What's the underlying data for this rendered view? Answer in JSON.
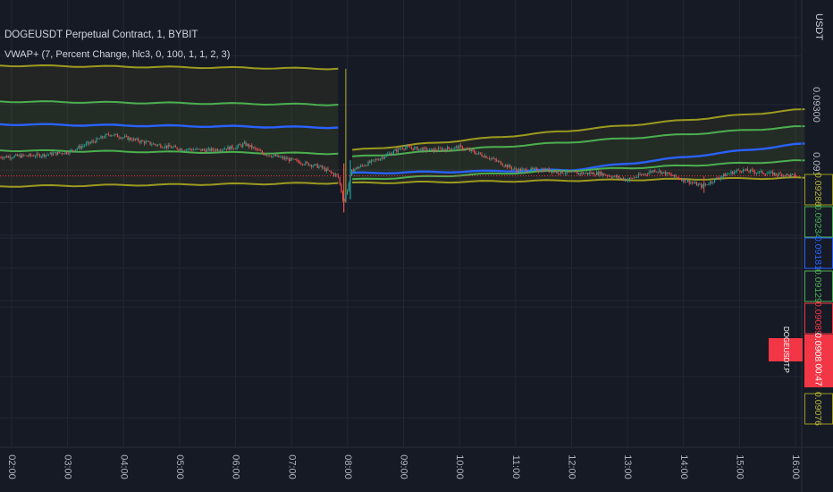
{
  "header": {
    "symbol_line": "DOGEUSDT Perpetual Contract, 1, BYBIT",
    "indicator_line": "VWAP+ (7, Percent Change, hlc3, 0, 100, 1, 1, 2, 3)"
  },
  "price_axis": {
    "unit": "USDT",
    "ticks": [
      "0.09300",
      "0.09100"
    ]
  },
  "price_labels": [
    {
      "text": "0.09286",
      "color": "#9c9a1f",
      "text_color": "#b5b33a",
      "filled": false
    },
    {
      "text": "0.09234",
      "color": "#4caf50",
      "text_color": "#4caf50",
      "filled": false
    },
    {
      "text": "0.09181",
      "color": "#2962ff",
      "text_color": "#2962ff",
      "filled": false
    },
    {
      "text": "0.09129",
      "color": "#4caf50",
      "text_color": "#4caf50",
      "filled": false
    },
    {
      "text": "0.09089",
      "color": "#f23645",
      "text_color": "#f23645",
      "filled": false
    },
    {
      "text": "0.09082",
      "color": "#f23645",
      "text_color": "#ffffff",
      "filled": true
    },
    {
      "text": "0.09076",
      "color": "#9c9a1f",
      "text_color": "#b5b33a",
      "filled": false
    }
  ],
  "symbol_tag": "DOGEUSDT.P",
  "countdown": "00:47",
  "time_axis": [
    "02:00",
    "03:00",
    "04:00",
    "05:00",
    "06:00",
    "07:00",
    "08:00",
    "09:00",
    "10:00",
    "11:00",
    "12:00",
    "13:00",
    "14:00",
    "15:00",
    "16:00"
  ],
  "colors": {
    "background": "#161a25",
    "grid": "#232732",
    "vwap": "#2962ff",
    "band1": "#4caf50",
    "band2": "#9c9a1f",
    "up": "#26a69a",
    "down": "#ef5350",
    "current_price_line": "#f23645"
  },
  "chart_data": {
    "type": "candlestick",
    "title": "DOGEUSDT Perpetual Contract, 1, BYBIT",
    "indicator": "VWAP+ (7, Percent Change, hlc3, 0, 100, 1, 1, 2, 3)",
    "x_axis": {
      "type": "time",
      "start": "01:47",
      "end": "16:10",
      "interval": "1 minute"
    },
    "y_axis": {
      "unit": "USDT",
      "range": [
        0.0899,
        0.0945
      ],
      "ticks": [
        0.093,
        0.091
      ]
    },
    "session_break": "08:00",
    "current_price": 0.09082,
    "price_path": [
      [
        "01:47",
        0.0914
      ],
      [
        "02:30",
        0.09145
      ],
      [
        "03:00",
        0.09155
      ],
      [
        "03:30",
        0.0919
      ],
      [
        "03:45",
        0.0921
      ],
      [
        "04:30",
        0.0918
      ],
      [
        "05:00",
        0.09165
      ],
      [
        "05:30",
        0.0916
      ],
      [
        "06:00",
        0.0917
      ],
      [
        "06:10",
        0.0918
      ],
      [
        "06:30",
        0.0915
      ],
      [
        "07:00",
        0.0913
      ],
      [
        "07:30",
        0.0911
      ],
      [
        "07:50",
        0.0908
      ],
      [
        "07:56",
        0.09
      ],
      [
        "08:05",
        0.091
      ],
      [
        "08:30",
        0.0913
      ],
      [
        "09:00",
        0.0917
      ],
      [
        "09:30",
        0.0916
      ],
      [
        "10:00",
        0.0917
      ],
      [
        "10:30",
        0.0914
      ],
      [
        "11:00",
        0.091
      ],
      [
        "11:30",
        0.091
      ],
      [
        "12:00",
        0.0909
      ],
      [
        "12:30",
        0.0909
      ],
      [
        "13:00",
        0.0907
      ],
      [
        "13:30",
        0.091
      ],
      [
        "14:00",
        0.0907
      ],
      [
        "14:20",
        0.0905
      ],
      [
        "14:40",
        0.0908
      ],
      [
        "15:00",
        0.091
      ],
      [
        "15:30",
        0.0909
      ],
      [
        "16:00",
        0.09082
      ]
    ],
    "series": [
      {
        "name": "VWAP",
        "color": "#2962ff",
        "values": [
          [
            "01:47",
            0.0924
          ],
          [
            "07:50",
            0.0923
          ],
          [
            "08:05",
            0.0909
          ],
          [
            "12:00",
            0.091
          ],
          [
            "16:10",
            0.09181
          ]
        ]
      },
      {
        "name": "Upper 1",
        "color": "#4caf50",
        "values": [
          [
            "01:47",
            0.0931
          ],
          [
            "07:50",
            0.093
          ],
          [
            "08:05",
            0.0914
          ],
          [
            "16:10",
            0.09234
          ]
        ]
      },
      {
        "name": "Lower 1",
        "color": "#4caf50",
        "values": [
          [
            "01:47",
            0.0916
          ],
          [
            "07:50",
            0.0915
          ],
          [
            "08:05",
            0.0907
          ],
          [
            "16:10",
            0.09129
          ]
        ]
      },
      {
        "name": "Upper 2",
        "color": "#9c9a1f",
        "values": [
          [
            "01:47",
            0.0942
          ],
          [
            "07:50",
            0.0941
          ],
          [
            "08:05",
            0.0916
          ],
          [
            "16:10",
            0.09286
          ]
        ]
      },
      {
        "name": "Lower 2",
        "color": "#9c9a1f",
        "values": [
          [
            "01:47",
            0.0905
          ],
          [
            "07:50",
            0.0906
          ],
          [
            "08:05",
            0.0906
          ],
          [
            "16:10",
            0.09076
          ]
        ]
      }
    ]
  }
}
